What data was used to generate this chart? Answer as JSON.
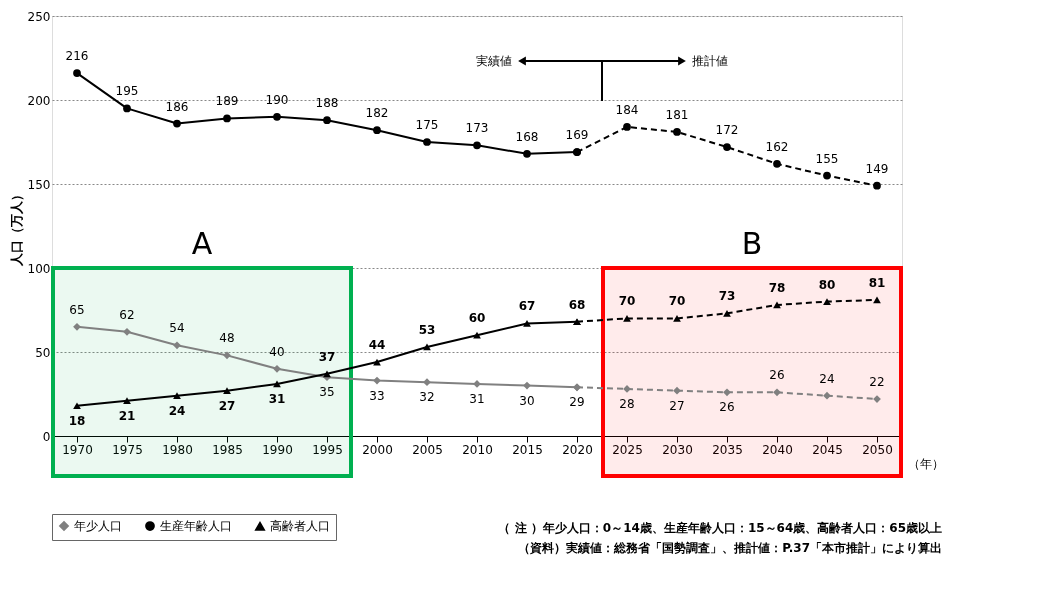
{
  "chart_data": {
    "type": "line",
    "ylabel": "人口（万人）",
    "xlabel": "（年）",
    "categories": [
      "1970",
      "1975",
      "1980",
      "1985",
      "1990",
      "1995",
      "2000",
      "2005",
      "2010",
      "2015",
      "2020",
      "2025",
      "2030",
      "2035",
      "2040",
      "2045",
      "2050"
    ],
    "series": [
      {
        "name": "年少人口",
        "color": "#808080",
        "marker": "diamond",
        "line_style": "solid",
        "values": [
          65,
          62,
          54,
          48,
          40,
          35,
          33,
          32,
          31,
          30,
          29,
          null,
          null,
          null,
          null,
          null,
          null
        ],
        "value_labels": [
          "65",
          "62",
          "54",
          "48",
          "40",
          "35",
          "33",
          "32",
          "31",
          "30",
          "29",
          null,
          null,
          null,
          null,
          null,
          null
        ]
      },
      {
        "name": "生産年齢人口",
        "color": "#000000",
        "marker": "circle",
        "line_style": "solid",
        "values": [
          216,
          195,
          186,
          189,
          190,
          188,
          182,
          175,
          173,
          168,
          169,
          null,
          null,
          null,
          null,
          null,
          null
        ],
        "value_labels": [
          "216",
          "195",
          "186",
          "189",
          "190",
          "188",
          "182",
          "175",
          "173",
          "168",
          "169",
          null,
          null,
          null,
          null,
          null,
          null
        ]
      },
      {
        "name": "高齢者人口",
        "color": "#000000",
        "marker": "triangle",
        "line_style": "solid",
        "values": [
          18,
          21,
          24,
          27,
          31,
          37,
          44,
          53,
          60,
          67,
          68,
          null,
          null,
          null,
          null,
          null,
          null
        ],
        "value_labels": [
          "18",
          "21",
          "24",
          "27",
          "31",
          "37",
          "44",
          "53",
          "60",
          "67",
          "68",
          null,
          null,
          null,
          null,
          null,
          null
        ]
      },
      {
        "color": "#808080",
        "marker": "diamond",
        "line_style": "dashed",
        "values": [
          null,
          null,
          null,
          null,
          null,
          null,
          null,
          null,
          null,
          null,
          29,
          28,
          27,
          26,
          26,
          24,
          22
        ],
        "value_labels": [
          null,
          null,
          null,
          null,
          null,
          null,
          null,
          null,
          null,
          null,
          null,
          "28",
          "27",
          "26",
          "26",
          "24",
          "22"
        ]
      },
      {
        "color": "#000000",
        "marker": "circle",
        "line_style": "dashed",
        "values": [
          null,
          null,
          null,
          null,
          null,
          null,
          null,
          null,
          null,
          null,
          169,
          184,
          181,
          172,
          162,
          155,
          149
        ],
        "value_labels": [
          null,
          null,
          null,
          null,
          null,
          null,
          null,
          null,
          null,
          null,
          null,
          "184",
          "181",
          "172",
          "162",
          "155",
          "149"
        ]
      },
      {
        "color": "#000000",
        "marker": "triangle",
        "line_style": "dashed",
        "values": [
          null,
          null,
          null,
          null,
          null,
          null,
          null,
          null,
          null,
          null,
          68,
          70,
          70,
          73,
          78,
          80,
          81
        ],
        "value_labels": [
          null,
          null,
          null,
          null,
          null,
          null,
          null,
          null,
          null,
          null,
          null,
          "70",
          "70",
          "73",
          "78",
          "80",
          "81"
        ]
      }
    ],
    "ylim": [
      0,
      250
    ],
    "yticks": [
      0,
      50,
      100,
      150,
      200,
      250
    ],
    "grid": "y",
    "legend": "bottom",
    "bands": [
      {
        "axis": "x",
        "from": "1970",
        "to": "1995",
        "label": "A",
        "color": "#00b050"
      },
      {
        "axis": "x",
        "from": "2025",
        "to": "2050",
        "label": "B",
        "color": "#ff0000"
      }
    ],
    "annotations": [
      "実績値",
      "推計値",
      "（ 注 ）年少人口：0～14歳、生産年齢人口：15～64歳、高齢者人口：65歳以上",
      "（資料）実績値：総務省「国勢調査」、推計値：P.37「本市推計」により算出"
    ]
  }
}
